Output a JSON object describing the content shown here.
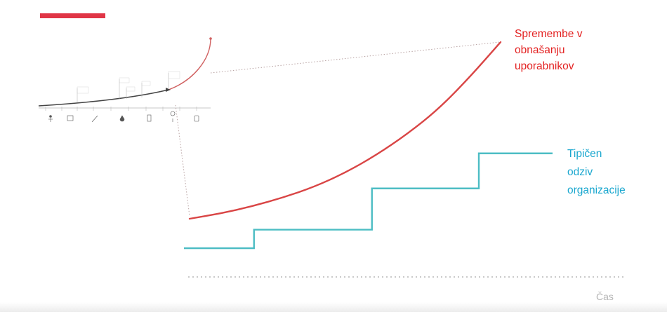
{
  "labels": {
    "user_behavior": [
      "Spremembe v",
      "obnašanju",
      "uporabnikov"
    ],
    "org_response": [
      "Tipičen",
      "odziv",
      "organizacije"
    ],
    "time_axis": "Čas"
  },
  "colors": {
    "user_curve": "#d94545",
    "user_text": "#e32222",
    "org_line": "#4dbdc4",
    "org_text": "#1aa7cf",
    "accent_bar": "#e03546",
    "axis_dots": "#c9c9c9",
    "zoom_lines": "#b8a2a2"
  },
  "chart_data": {
    "type": "line",
    "title": "",
    "xlabel": "Čas",
    "ylabel": "",
    "series": [
      {
        "name": "Spremembe v obnašanju uporabnikov",
        "style": "exponential",
        "x": [
          0,
          10,
          20,
          30,
          40,
          50,
          60,
          70,
          80,
          90,
          100
        ],
        "values": [
          0,
          3,
          7,
          12,
          18,
          26,
          36,
          48,
          62,
          80,
          100
        ]
      },
      {
        "name": "Tipičen odziv organizacije",
        "style": "step",
        "x": [
          0,
          19,
          19,
          51,
          51,
          80,
          80,
          100
        ],
        "values": [
          0,
          0,
          9,
          9,
          29,
          29,
          46,
          46
        ]
      }
    ],
    "grid": false,
    "legend": "inline-labels"
  }
}
